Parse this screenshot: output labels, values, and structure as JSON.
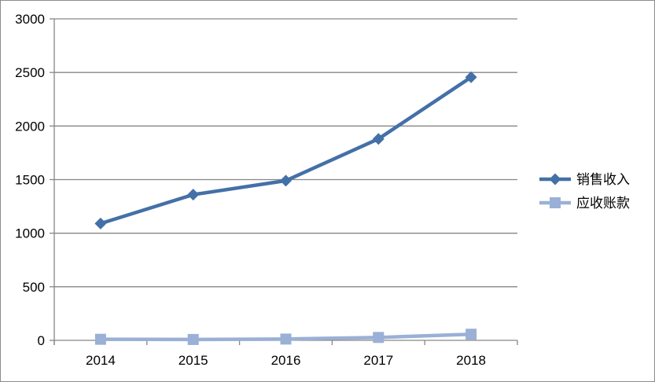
{
  "chart_data": {
    "type": "line",
    "title": "",
    "xlabel": "",
    "ylabel": "",
    "categories": [
      "2014",
      "2015",
      "2016",
      "2017",
      "2018"
    ],
    "ylim": [
      0,
      3000
    ],
    "yticks": [
      "0",
      "500",
      "1000",
      "1500",
      "2000",
      "2500",
      "3000"
    ],
    "grid": "horizontal",
    "legend_position": "right",
    "series": [
      {
        "name": "销售收入",
        "values": [
          1090,
          1360,
          1490,
          1880,
          2455
        ],
        "color": "#4470A8",
        "marker": "diamond"
      },
      {
        "name": "应收账款",
        "values": [
          10,
          8,
          12,
          27,
          57
        ],
        "color": "#9AB0D6",
        "marker": "square"
      }
    ]
  }
}
